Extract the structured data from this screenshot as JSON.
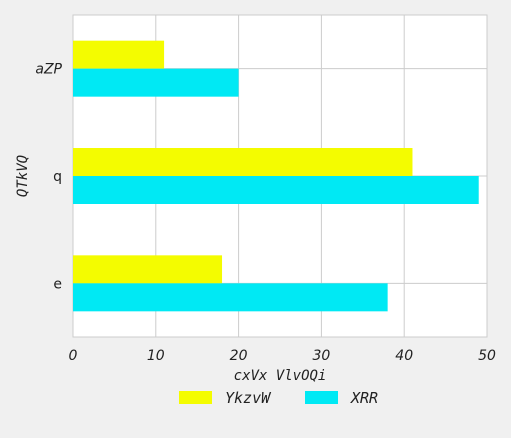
{
  "chart_data": {
    "type": "bar",
    "orientation": "horizontal",
    "categories": [
      "aZP",
      "q",
      "e"
    ],
    "series": [
      {
        "name": "YkzvW",
        "values": [
          11,
          41,
          18
        ],
        "color": "#f4fc00"
      },
      {
        "name": "XRR",
        "values": [
          20,
          49,
          38
        ],
        "color": "#00e9f4"
      }
    ],
    "xlabel": "cxVx VlvOQi",
    "ylabel": "QTkVQ",
    "xlim": [
      0,
      50
    ],
    "xticks": [
      "0",
      "10",
      "20",
      "30",
      "40",
      "50"
    ],
    "grid": true,
    "legend_position": "bottom"
  }
}
